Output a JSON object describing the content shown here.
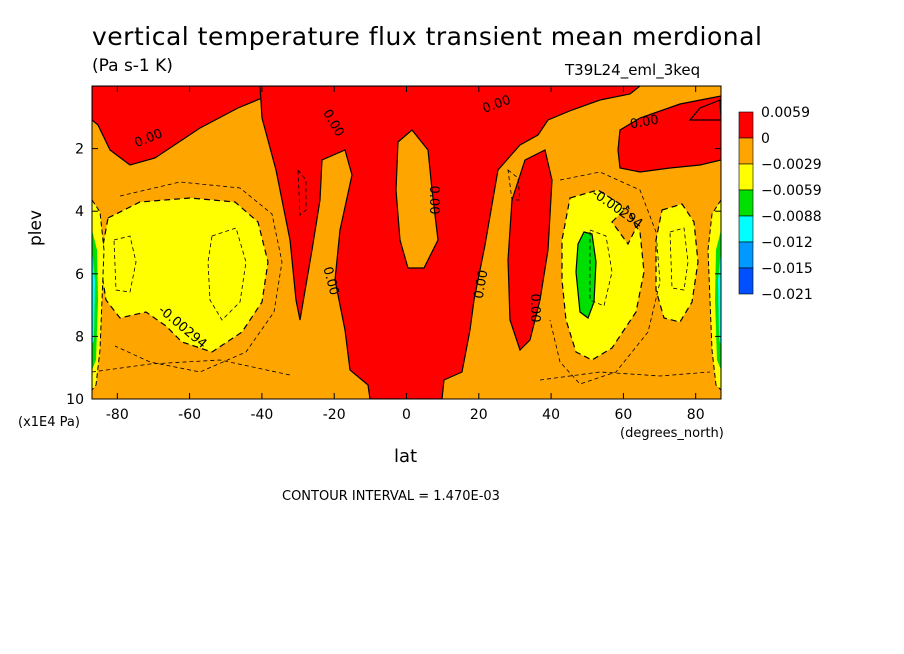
{
  "title": "vertical temperature flux transient mean merdional",
  "units": "(Pa s-1 K)",
  "run_name": "T39L24_eml_3keq",
  "contour_interval": "CONTOUR INTERVAL = 1.470E-03",
  "colors": {
    "positive": "#ff0000",
    "neg1": "#ffa500",
    "neg2": "#ffff00",
    "neg3": "#00e000",
    "neg4": "#00ffff",
    "neg5": "#0099ff",
    "neg6": "#0050ff"
  },
  "chart_data": {
    "type": "heatmap",
    "subtype": "filled-contour",
    "xlabel": "lat",
    "xunits": "(degrees_north)",
    "ylabel": "plev",
    "yunits": "(x1E4 Pa)",
    "xlim": [
      -87,
      87
    ],
    "ylim": [
      10,
      0
    ],
    "x_ticks": [
      -80,
      -60,
      -40,
      -20,
      0,
      20,
      40,
      60,
      80
    ],
    "y_ticks": [
      2,
      4,
      6,
      8,
      10
    ],
    "colorbar": {
      "levels": [
        "0.0059",
        "0",
        "-0.0029",
        "-0.0059",
        "-0.0088",
        "-0.012",
        "-0.015",
        "-0.021"
      ],
      "colors": [
        "#ff0000",
        "#ffa500",
        "#ffff00",
        "#00e000",
        "#00ffff",
        "#0099ff",
        "#0050ff"
      ]
    },
    "contour_labels": [
      "0.00",
      "0.00",
      "0.00",
      "0.00",
      "0.00",
      "0.00",
      "0.00",
      "0.00",
      "-0.00294",
      "-0.00294"
    ]
  }
}
